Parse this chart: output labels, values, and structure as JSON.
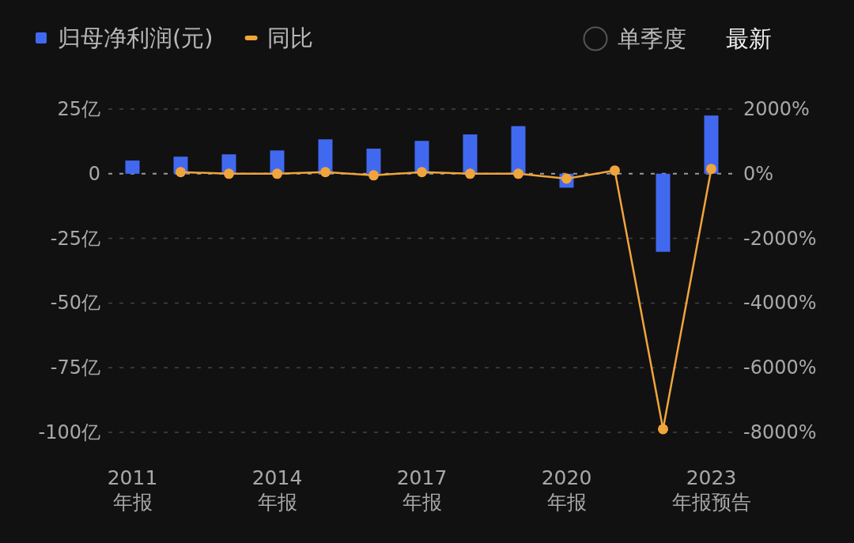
{
  "chart_data": {
    "type": "bar",
    "categories": [
      "2011\n年报",
      null,
      null,
      "2014\n年报",
      null,
      null,
      "2017\n年报",
      null,
      null,
      "2020\n年报",
      null,
      null,
      "2023\n年报预告"
    ],
    "series": [
      {
        "name": "归母净利润(元)",
        "color": "#4169f0",
        "values": [
          5.1,
          6.6,
          7.5,
          9.0,
          13.3,
          9.7,
          12.7,
          15.2,
          18.4,
          -5.4,
          null,
          -30.2,
          22.5
        ]
      },
      {
        "name": "同比",
        "type": "line",
        "axis": "y2",
        "color": "#f0a53c",
        "marker": "circle",
        "values": [
          null,
          50,
          0,
          0,
          50,
          -50,
          50,
          0,
          0,
          -150,
          100,
          -7900,
          150
        ]
      }
    ],
    "ylim": [
      -100,
      25
    ],
    "yticks": [
      {
        "value": 25,
        "label": "25亿"
      },
      0,
      {
        "value": -25,
        "label": "-25亿"
      },
      {
        "value": -50,
        "label": "-50亿"
      },
      {
        "value": -75,
        "label": "-75亿"
      },
      {
        "value": -100,
        "label": "-100亿"
      }
    ],
    "y2lim": [
      -8000,
      2000
    ],
    "y2ticks": [
      {
        "value": 2000,
        "label": "2000%"
      },
      {
        "value": 0,
        "label": "0%"
      },
      {
        "value": -2000,
        "label": "-2000%"
      },
      {
        "value": -4000,
        "label": "-4000%"
      },
      {
        "value": -6000,
        "label": "-6000%"
      },
      {
        "value": -8000,
        "label": "-8000%"
      }
    ],
    "grid": "y",
    "ref_lines": [
      {
        "axis": "y",
        "value": 0,
        "color": "#9a9a9a",
        "line_style": "dashed"
      }
    ],
    "legend": "top left",
    "annotations": [
      "单季度",
      "最新"
    ]
  }
}
